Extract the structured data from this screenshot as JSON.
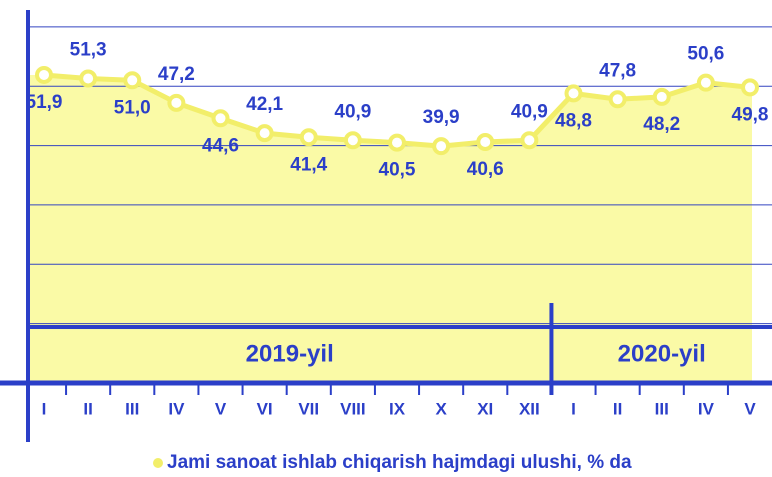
{
  "chart_data": {
    "type": "area",
    "categories": [
      "I",
      "II",
      "III",
      "IV",
      "V",
      "VI",
      "VII",
      "VIII",
      "IX",
      "X",
      "XI",
      "XII",
      "I",
      "II",
      "III",
      "IV",
      "V"
    ],
    "periods": [
      "2019-yil",
      "2020-yil"
    ],
    "series": [
      {
        "name": "Jami sanoat ishlab chiqarish hajmdagi ulushi, % da",
        "color": "#f2ee6a",
        "values": [
          51.9,
          51.3,
          51.0,
          47.2,
          44.6,
          42.1,
          41.4,
          40.9,
          40.5,
          39.9,
          40.6,
          40.9,
          48.8,
          47.8,
          48.2,
          50.6,
          49.8
        ],
        "value_labels": [
          "51,9",
          "51,3",
          "51,0",
          "47,2",
          "44,6",
          "42,1",
          "41,4",
          "40,9",
          "40,5",
          "39,9",
          "40,6",
          "40,9",
          "48,8",
          "47,8",
          "48,2",
          "50,6",
          "49,8"
        ]
      }
    ],
    "ylim": [
      0,
      62
    ],
    "yticks": [
      10,
      20,
      30,
      40,
      50,
      60
    ],
    "grid": true
  }
}
